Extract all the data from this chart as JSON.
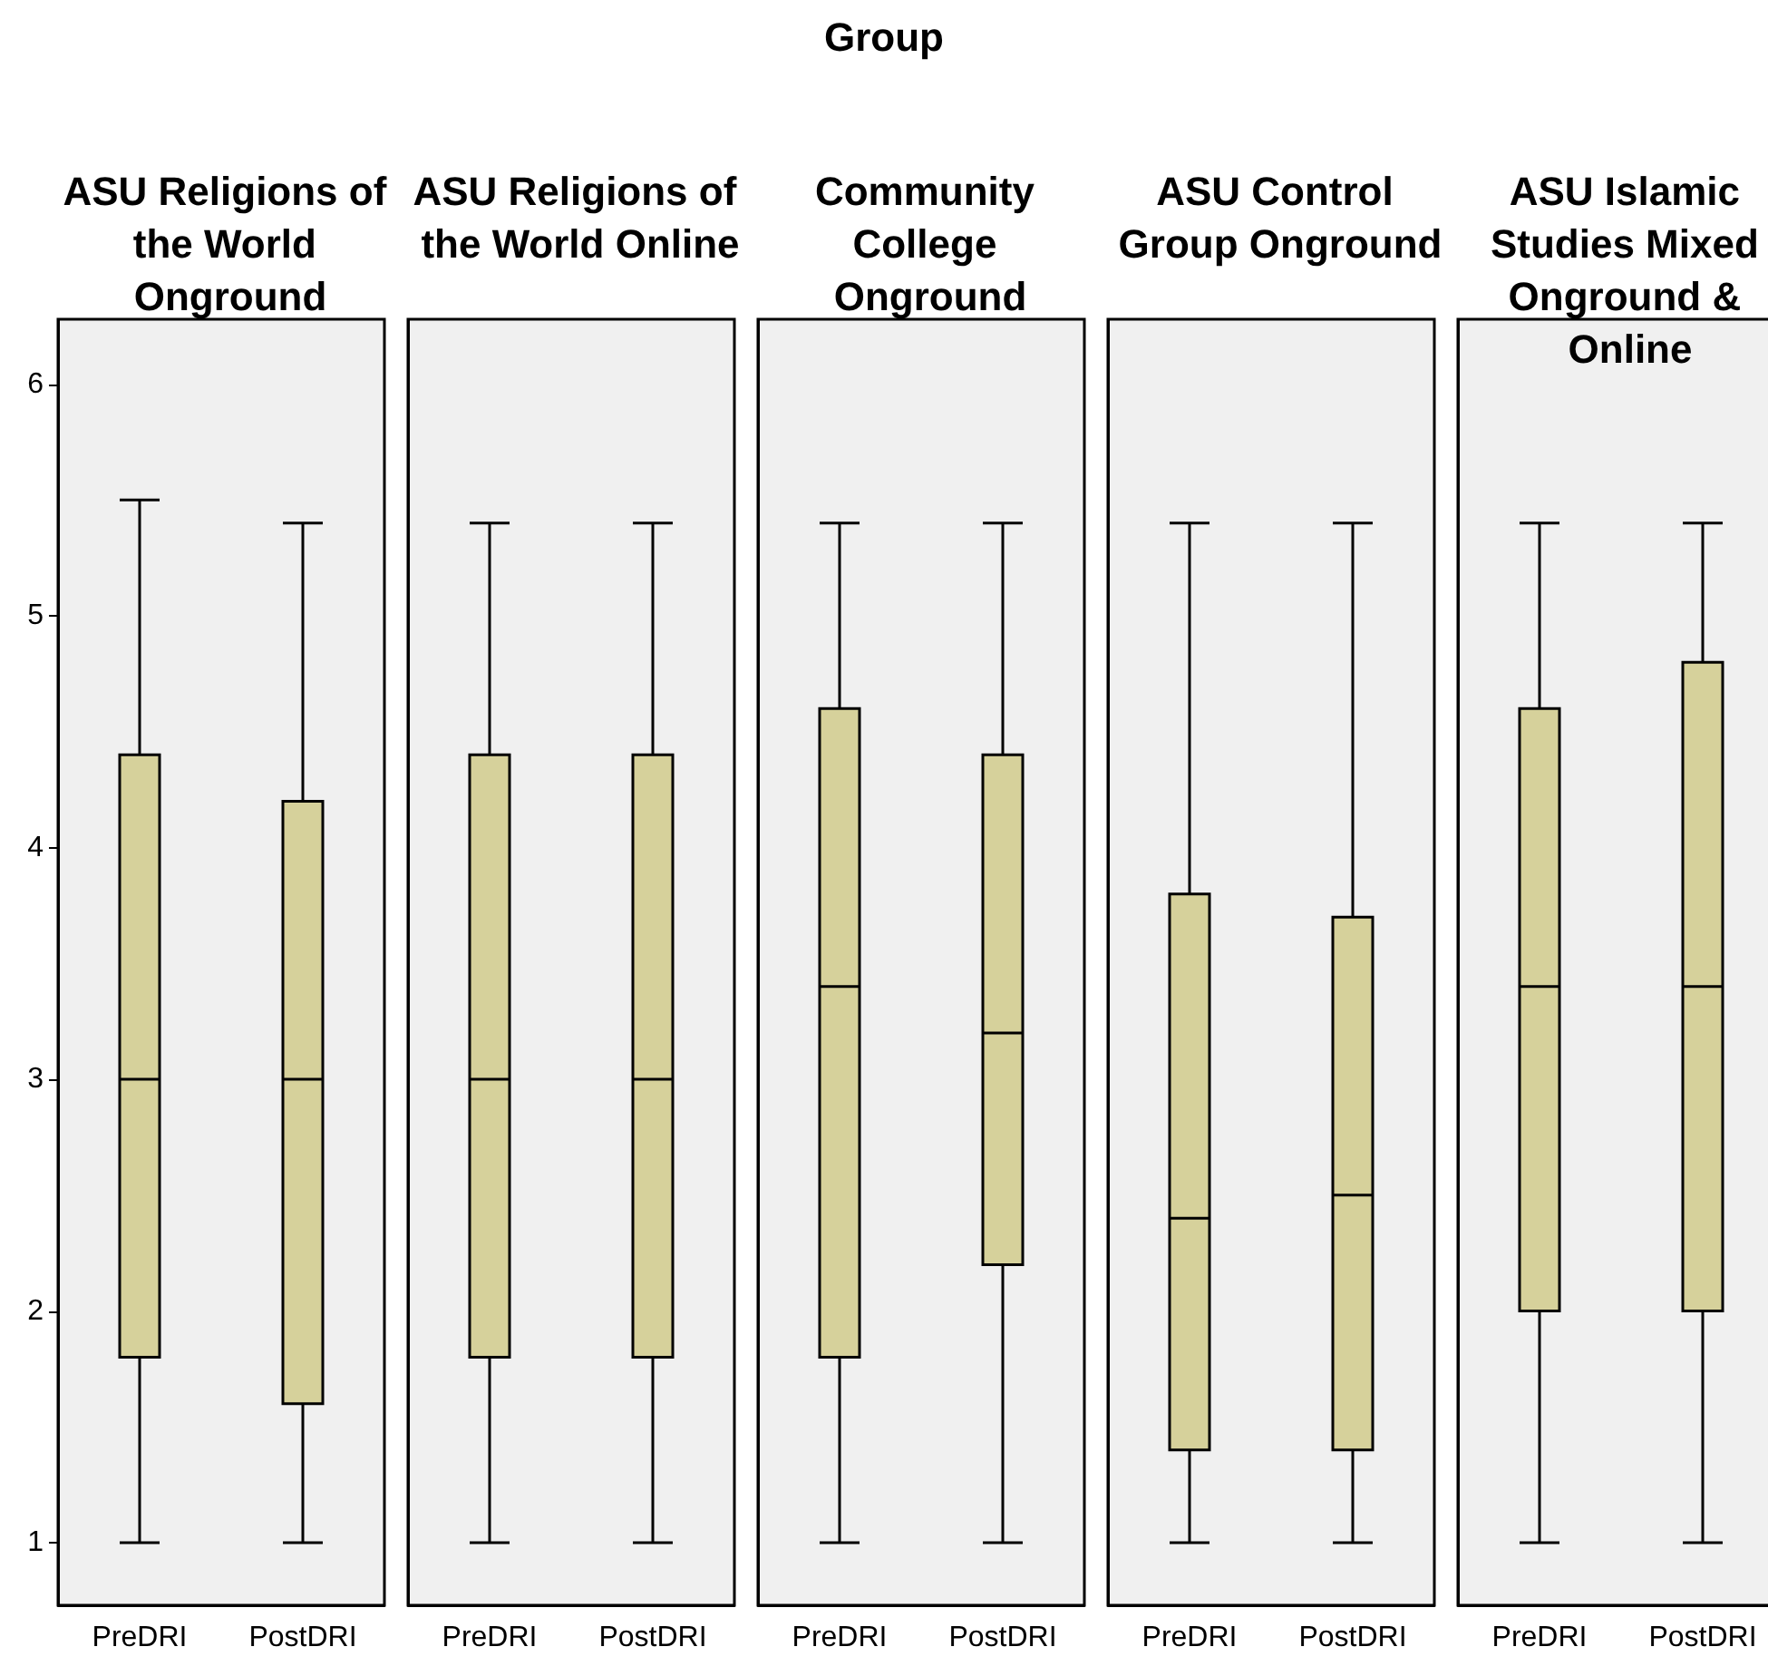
{
  "chart_data": [
    {
      "type": "box",
      "title": "ASU Religions of the World Onground",
      "annotations": [
        "Group"
      ],
      "categories": [
        "PreDRI",
        "PostDRI"
      ],
      "color": "#d6d19b",
      "boxes": [
        {
          "low": 1,
          "q1": 1.8,
          "median": 3,
          "q3": 4.4,
          "high": 5.5
        },
        {
          "low": 1,
          "q1": 1.6,
          "median": 3,
          "q3": 4.2,
          "high": 5.4
        }
      ],
      "ylim": [
        0.73,
        6.28
      ],
      "yticks": [
        1,
        2,
        3,
        4,
        5,
        6
      ]
    },
    {
      "type": "box",
      "title": "ASU Religions of the World Online",
      "categories": [
        "PreDRI",
        "PostDRI"
      ],
      "color": "#d6d19b",
      "boxes": [
        {
          "low": 1,
          "q1": 1.8,
          "median": 3,
          "q3": 4.4,
          "high": 5.4
        },
        {
          "low": 1,
          "q1": 1.8,
          "median": 3,
          "q3": 4.4,
          "high": 5.4
        }
      ],
      "ylim": [
        0.73,
        6.28
      ],
      "yticks": [
        1,
        2,
        3,
        4,
        5,
        6
      ],
      "tick_labels": "x"
    },
    {
      "type": "box",
      "title": "Community College Onground",
      "categories": [
        "PreDRI",
        "PostDRI"
      ],
      "color": "#d6d19b",
      "boxes": [
        {
          "low": 1,
          "q1": 1.8,
          "median": 3.4,
          "q3": 4.6,
          "high": 5.4
        },
        {
          "low": 1,
          "q1": 2.2,
          "median": 3.2,
          "q3": 4.4,
          "high": 5.4
        }
      ],
      "ylim": [
        0.73,
        6.28
      ],
      "yticks": [
        1,
        2,
        3,
        4,
        5,
        6
      ],
      "tick_labels": "x"
    },
    {
      "type": "box",
      "title": "ASU Control Group Onground",
      "categories": [
        "PreDRI",
        "PostDRI"
      ],
      "color": "#d6d19b",
      "boxes": [
        {
          "low": 1,
          "q1": 1.4,
          "median": 2.4,
          "q3": 3.8,
          "high": 5.4
        },
        {
          "low": 1,
          "q1": 1.4,
          "median": 2.5,
          "q3": 3.7,
          "high": 5.4
        }
      ],
      "ylim": [
        0.73,
        6.28
      ],
      "yticks": [
        1,
        2,
        3,
        4,
        5,
        6
      ],
      "tick_labels": "x"
    },
    {
      "type": "box",
      "title": "ASU Islamic Studies Mixed Onground & Online",
      "categories": [
        "PreDRI",
        "PostDRI"
      ],
      "color": "#d6d19b",
      "boxes": [
        {
          "low": 1,
          "q1": 2,
          "median": 3.4,
          "q3": 4.6,
          "high": 5.4
        },
        {
          "low": 1,
          "q1": 2,
          "median": 3.4,
          "q3": 4.8,
          "high": 5.4
        }
      ],
      "ylim": [
        0.73,
        6.28
      ],
      "yticks": [
        1,
        2,
        3,
        4,
        5,
        6
      ],
      "tick_labels": "x"
    }
  ]
}
